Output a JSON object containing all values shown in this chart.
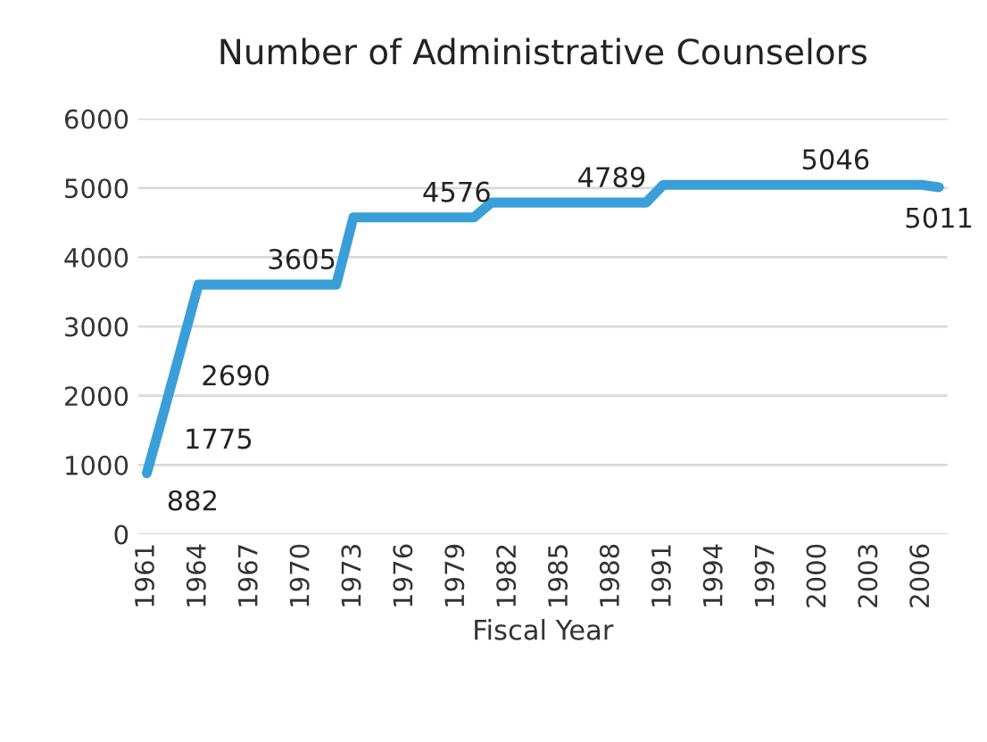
{
  "chart_data": {
    "type": "line",
    "title": "Number of Administrative Counselors",
    "xlabel": "Fiscal Year",
    "categories": [
      "1961",
      null,
      null,
      "1964",
      null,
      null,
      "1967",
      null,
      null,
      "1970",
      null,
      null,
      "1973",
      null,
      null,
      "1976",
      null,
      null,
      "1979",
      null,
      null,
      "1982",
      null,
      null,
      "1985",
      null,
      null,
      "1988",
      null,
      null,
      "1991",
      null,
      null,
      "1994",
      null,
      null,
      "1997",
      null,
      null,
      "2000",
      null,
      null,
      "2003",
      null,
      null,
      "2006",
      null
    ],
    "series": [
      {
        "color": "#3a9fd8",
        "values": [
          882,
          1775,
          2690,
          3605,
          3605,
          3605,
          3605,
          3605,
          3605,
          3605,
          3605,
          3605,
          4576,
          4576,
          4576,
          4576,
          4576,
          4576,
          4576,
          4576,
          4789,
          4789,
          4789,
          4789,
          4789,
          4789,
          4789,
          4789,
          4789,
          4789,
          5046,
          5046,
          5046,
          5046,
          5046,
          5046,
          5046,
          5046,
          5046,
          5046,
          5046,
          5046,
          5046,
          5046,
          5046,
          5046,
          5011
        ],
        "value_labels": [
          "882",
          "1775",
          "2690",
          null,
          null,
          null,
          null,
          null,
          null,
          "3605",
          null,
          null,
          null,
          null,
          null,
          null,
          null,
          null,
          "4576",
          null,
          null,
          null,
          null,
          null,
          null,
          null,
          null,
          "4789",
          null,
          null,
          null,
          null,
          null,
          null,
          null,
          null,
          null,
          null,
          null,
          null,
          "5046",
          null,
          null,
          null,
          null,
          null,
          "5011"
        ]
      }
    ],
    "ylim": [
      0,
      6000
    ],
    "yticks": [
      0,
      1000,
      2000,
      3000,
      4000,
      5000,
      6000
    ],
    "grid": "y",
    "legend": false,
    "marker": "none",
    "line_style": "solid"
  }
}
